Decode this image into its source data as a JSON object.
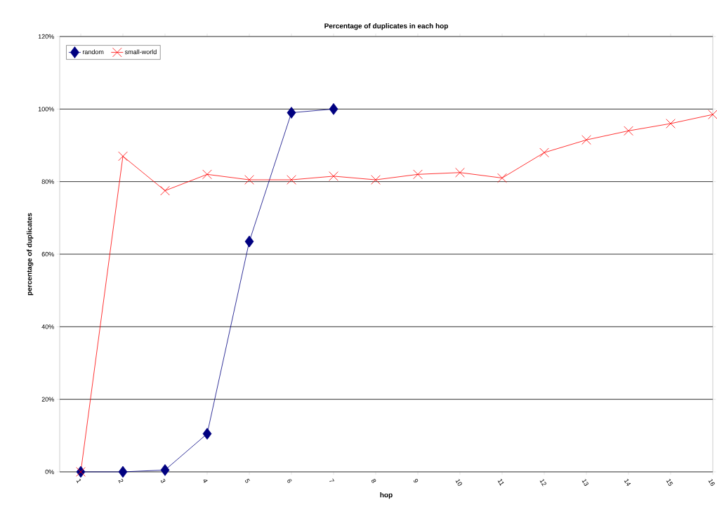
{
  "chart_data": {
    "type": "line",
    "title": "Percentage of duplicates in each hop",
    "xlabel": "hop",
    "ylabel": "percentage of duplicates",
    "categories": [
      "1",
      "2",
      "3",
      "4",
      "5",
      "6",
      "7",
      "8",
      "9",
      "10",
      "11",
      "12",
      "13",
      "14",
      "15",
      "16"
    ],
    "series": [
      {
        "name": "random",
        "color": "#000080",
        "marker": "diamond",
        "values": [
          0,
          0,
          0.5,
          10.5,
          63.5,
          99,
          100,
          null,
          null,
          null,
          null,
          null,
          null,
          null,
          null,
          null
        ]
      },
      {
        "name": "small-world",
        "color": "#ff0000",
        "marker": "cross",
        "values": [
          0,
          87,
          77.5,
          82,
          80.5,
          80.5,
          81.5,
          80.5,
          82,
          82.5,
          81,
          88,
          91.5,
          94,
          96,
          98.5
        ]
      }
    ],
    "ylim": [
      0,
      120
    ],
    "yticks": [
      {
        "value": 0,
        "label": "0%"
      },
      {
        "value": 20,
        "label": "20%"
      },
      {
        "value": 40,
        "label": "40%"
      },
      {
        "value": 60,
        "label": "60%"
      },
      {
        "value": 80,
        "label": "80%"
      },
      {
        "value": 100,
        "label": "100%"
      },
      {
        "value": 120,
        "label": "120%"
      }
    ],
    "grid": "y",
    "legend": "top left"
  }
}
